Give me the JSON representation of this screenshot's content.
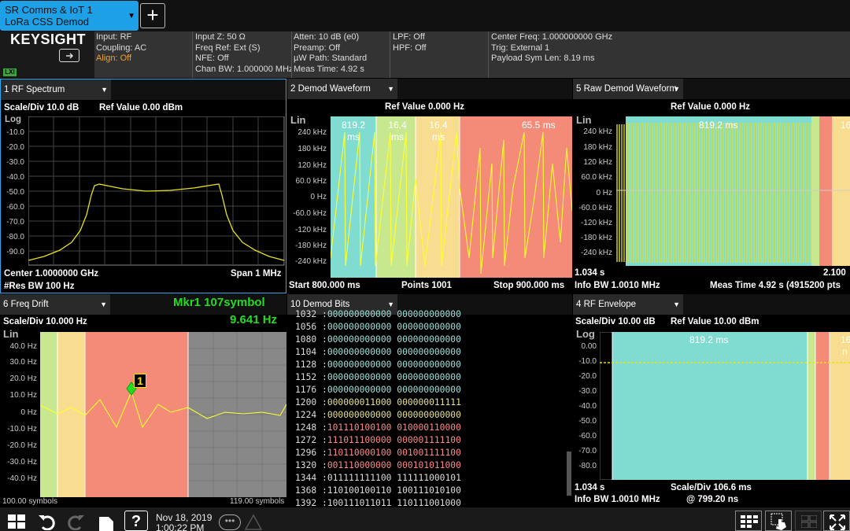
{
  "tab": {
    "line1": "SR Comms & IoT 1",
    "line2": "LoRa CSS Demod",
    "add": "+"
  },
  "header": {
    "logo": "KEYSIGHT",
    "lxi": "LXI",
    "col1": [
      "Input: RF",
      "Coupling: AC",
      "Align: Off"
    ],
    "col2": [
      "Input Z: 50 Ω",
      "Freq Ref: Ext (S)",
      "NFE: Off",
      "Chan BW: 1.000000 MHz"
    ],
    "col3": [
      "Atten: 10 dB (e0)",
      "Preamp: Off",
      "µW Path: Standard",
      "Meas Time: 4.92 s"
    ],
    "col4": [
      "LPF: Off",
      "HPF: Off"
    ],
    "col5": [
      "Center Freq: 1.000000000 GHz",
      "Trig: External 1",
      "Payload Sym Len: 8.19 ms"
    ]
  },
  "panel1": {
    "title": "1 RF Spectrum",
    "scale": "Scale/Div 10.0 dB",
    "ref": "Ref Value 0.00 dBm",
    "mode": "Log",
    "ticks": [
      "-10.0",
      "-20.0",
      "-30.0",
      "-40.0",
      "-50.0",
      "-60.0",
      "-70.0",
      "-80.0",
      "-90.0"
    ],
    "center": "Center 1.0000000 GHz",
    "span": "Span 1 MHz",
    "resbw": "#Res BW 100 Hz"
  },
  "panel2": {
    "title": "2 Demod Waveform",
    "ref": "Ref Value 0.000 Hz",
    "mode": "Lin",
    "ticks": [
      "240 kHz",
      "180 kHz",
      "120 kHz",
      "60.0 kHz",
      "0 Hz",
      "-60.0 kHz",
      "-120 kHz",
      "-180 kHz",
      "-240 kHz"
    ],
    "seg_labels": [
      "819.2",
      "ms",
      "16.4",
      "ms",
      "16.4",
      "ms",
      "65.5 ms"
    ],
    "start": "Start 800.000 ms",
    "points": "Points 1001",
    "stop": "Stop 900.000 ms"
  },
  "panel5": {
    "title": "5 Raw Demod Waveform",
    "ref": "Ref Value 0.000 Hz",
    "mode": "Lin",
    "ticks": [
      "240 kHz",
      "180 kHz",
      "120 kHz",
      "60.0 kHz",
      "0 Hz",
      "-60.0 kHz",
      "-120 kHz",
      "-180 kHz",
      "-240 kHz"
    ],
    "seg_label": "819.2 ms",
    "seg_label2": "16",
    "start": "1.034 s",
    "stop": "2.100",
    "infobw": "Info BW 1.0010 MHz",
    "meastime": "Meas Time 4.92 s (4915200 pts"
  },
  "panel6": {
    "title": "6 Freq Drift",
    "marker_name": "Mkr1  107symbol",
    "marker_value": "9.641 Hz",
    "scale": "Scale/Div 10.000 Hz",
    "mode": "Lin",
    "ticks": [
      "40.0 Hz",
      "30.0 Hz",
      "20.0 Hz",
      "10.0 Hz",
      "0 Hz",
      "-10.0 Hz",
      "-20.0 Hz",
      "-30.0 Hz",
      "-40.0 Hz"
    ],
    "marker_num": "1",
    "start": "100.00 symbols",
    "stop": "119.00 symbols"
  },
  "panel10": {
    "title": "10 Demod Bits",
    "rows": [
      {
        "n": "1032",
        "a": "000000000000",
        "b": "000000000000",
        "c": "cyan"
      },
      {
        "n": "1056",
        "a": "000000000000",
        "b": "000000000000",
        "c": "cyan"
      },
      {
        "n": "1080",
        "a": "000000000000",
        "b": "000000000000",
        "c": "cyan"
      },
      {
        "n": "1104",
        "a": "000000000000",
        "b": "000000000000",
        "c": "cyan"
      },
      {
        "n": "1128",
        "a": "000000000000",
        "b": "000000000000",
        "c": "cyan"
      },
      {
        "n": "1152",
        "a": "000000000000",
        "b": "000000000000",
        "c": "cyan"
      },
      {
        "n": "1176",
        "a": "000000000000",
        "b": "000000000000",
        "c": "cyan"
      },
      {
        "n": "1200",
        "a": "000000011000",
        "b": "000000011111",
        "c": "yellow"
      },
      {
        "n": "1224",
        "a": "000000000000",
        "b": "000000000000",
        "c": "yellow"
      },
      {
        "n": "1248",
        "a": "101110100100",
        "b": "010000110000",
        "c": "red"
      },
      {
        "n": "1272",
        "a": "111011100000",
        "b": "000001111100",
        "c": "red"
      },
      {
        "n": "1296",
        "a": "110110000100",
        "b": "001001111100",
        "c": "red"
      },
      {
        "n": "1320",
        "a": "001110000000",
        "b": "000101011000",
        "c": "red"
      },
      {
        "n": "1344",
        "a": "011111111100",
        "b": "111111000101",
        "c": "white"
      },
      {
        "n": "1368",
        "a": "110100100110",
        "b": "100111010100",
        "c": "white"
      },
      {
        "n": "1392",
        "a": "100111011011",
        "b": "110111001000",
        "c": "white"
      }
    ]
  },
  "panel4": {
    "title": "4 RF Envelope",
    "scale": "Scale/Div 10.00 dB",
    "ref": "Ref Value 10.00 dBm",
    "mode": "Log",
    "ticks": [
      "0.00",
      "-10.0",
      "-20.0",
      "-30.0",
      "-40.0",
      "-50.0",
      "-60.0",
      "-70.0",
      "-80.0"
    ],
    "seg_label": "819.2 ms",
    "seg_label2": "16",
    "seg_label3": "n",
    "start": "1.034 s",
    "scale_x": "Scale/Div 106.6 ms",
    "infobw": "Info BW 1.0010 MHz",
    "res": "@ 799.20 ns"
  },
  "footer": {
    "date": "Nov 18, 2019",
    "time": "1:00:22 PM",
    "help": "?"
  }
}
